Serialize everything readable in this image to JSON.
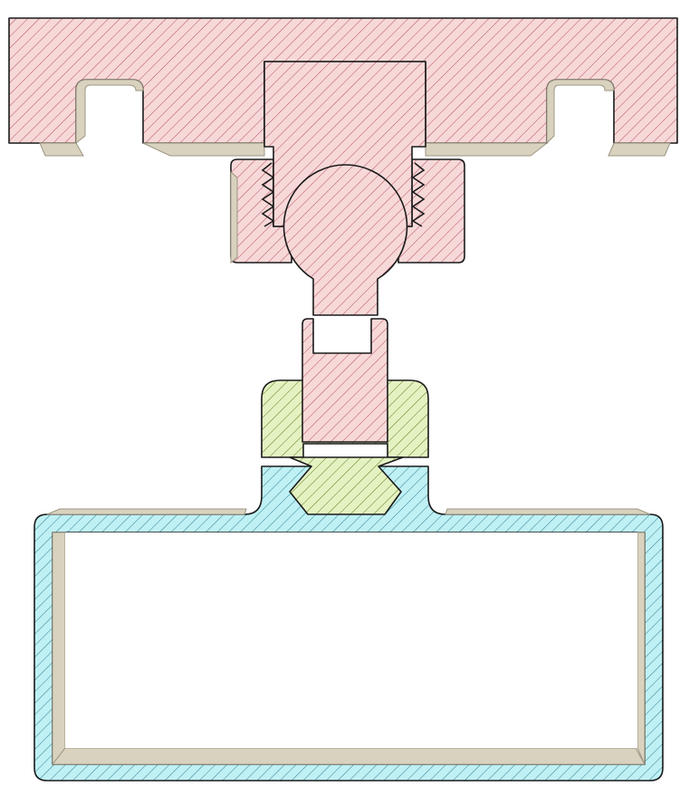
{
  "view": {
    "type": "cad-section-view",
    "background_color": "#ffffff",
    "outline_color": "#1a1a1a"
  },
  "materials": {
    "mount_body": {
      "fill": "#f7d8d8",
      "hatch": "#b05060"
    },
    "adapter_nut": {
      "fill": "#e4f2c2",
      "hatch": "#5e7a1e"
    },
    "tube_profile": {
      "fill": "#bff0f4",
      "hatch": "#2f7f92"
    },
    "shadow_face": {
      "fill": "#d8d2bf",
      "edge": "#9c9580"
    }
  },
  "parts": [
    {
      "name": "top-plate",
      "material": "mount_body"
    },
    {
      "name": "threaded-collar",
      "material": "mount_body"
    },
    {
      "name": "ball-stud",
      "material": "mount_body"
    },
    {
      "name": "dovetail-adapter",
      "material": "adapter_nut"
    },
    {
      "name": "rectangular-tube",
      "material": "tube_profile"
    }
  ]
}
